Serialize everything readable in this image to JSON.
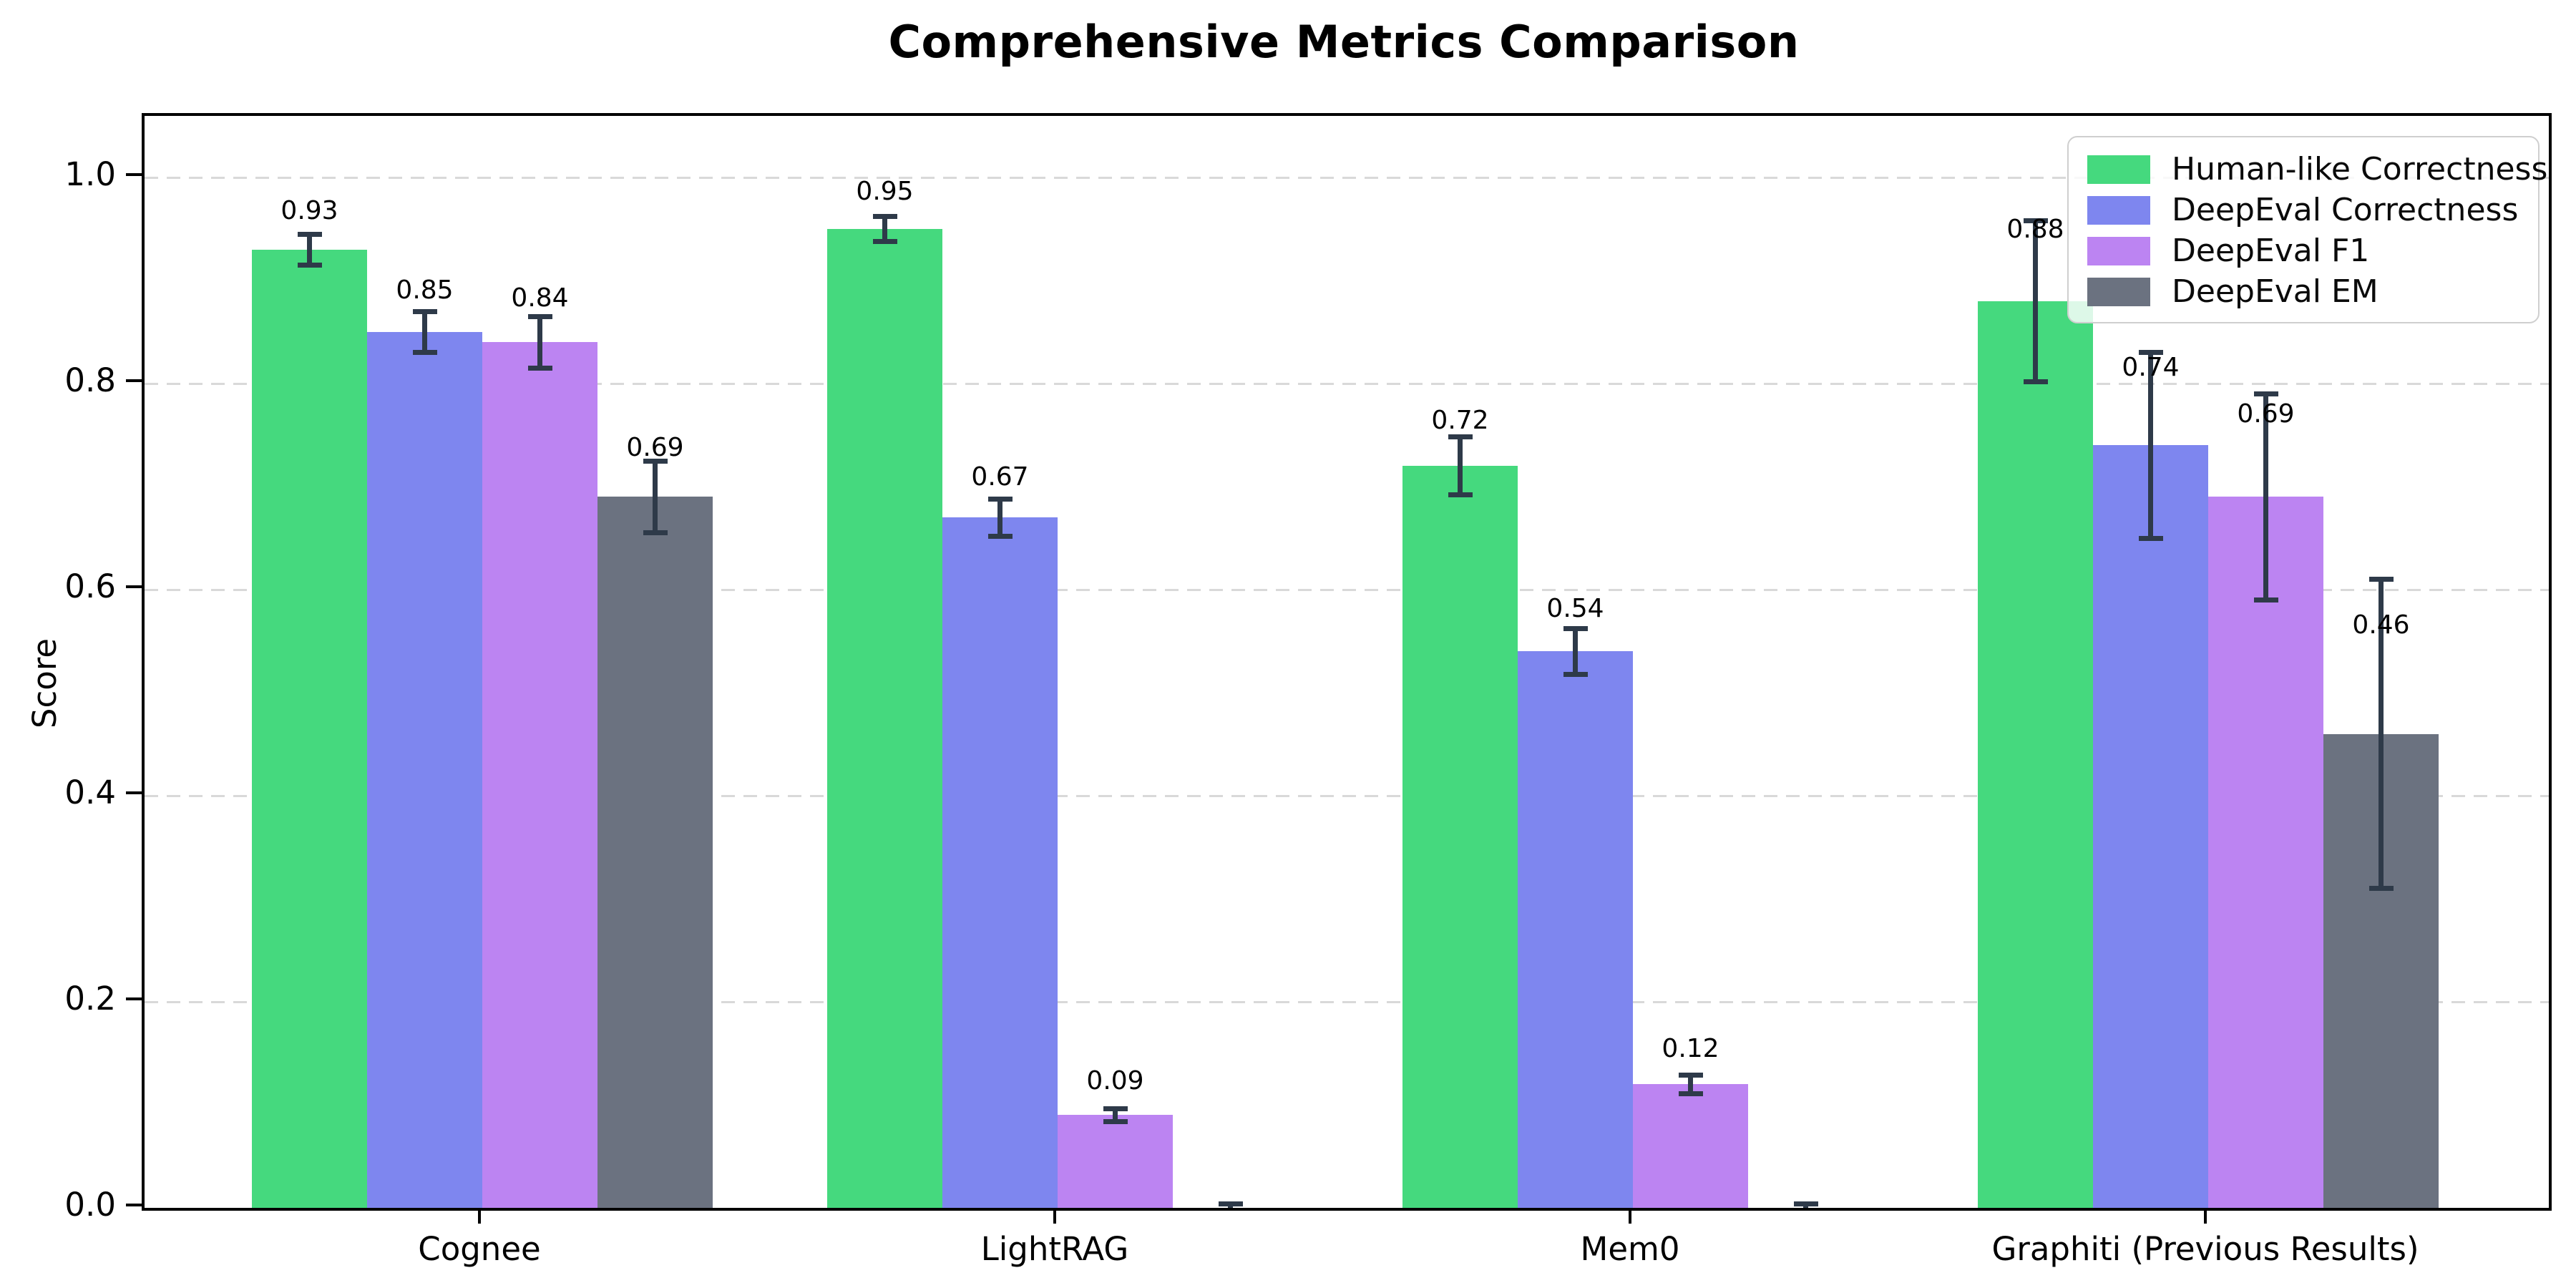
{
  "figure": {
    "title": "Comprehensive Metrics Comparison",
    "ylabel": "Score"
  },
  "chart_data": {
    "type": "bar",
    "title": "Comprehensive Metrics Comparison",
    "xlabel": "",
    "ylabel": "Score",
    "ylim": [
      0.0,
      1.06
    ],
    "yticks": [
      "0.0",
      "0.2",
      "0.4",
      "0.6",
      "0.8",
      "1.0"
    ],
    "grid": "horizontal dashed gridlines at 0.2 intervals",
    "legend_position": "upper right",
    "background_color": "#ffffff",
    "error_bar_color": "#2e3a49",
    "categories": [
      "Cognee",
      "LightRAG",
      "Mem0",
      "Graphiti (Previous Results)"
    ],
    "series": [
      {
        "name": "Human-like Correctness",
        "color": "#45d97e",
        "values": [
          0.93,
          0.95,
          0.72,
          0.88
        ],
        "errors": [
          0.015,
          0.012,
          0.028,
          0.078
        ],
        "labels": [
          "0.93",
          "0.95",
          "0.72",
          "0.88"
        ]
      },
      {
        "name": "DeepEval Correctness",
        "color": "#7e86ef",
        "values": [
          0.85,
          0.67,
          0.54,
          0.74
        ],
        "errors": [
          0.02,
          0.018,
          0.022,
          0.09
        ],
        "labels": [
          "0.85",
          "0.67",
          "0.54",
          "0.74"
        ]
      },
      {
        "name": "DeepEval F1",
        "color": "#bc84f2",
        "values": [
          0.84,
          0.09,
          0.12,
          0.69
        ],
        "errors": [
          0.025,
          0.006,
          0.009,
          0.1
        ],
        "labels": [
          "0.84",
          "0.09",
          "0.12",
          "0.69"
        ]
      },
      {
        "name": "DeepEval EM",
        "color": "#6b7280",
        "values": [
          0.69,
          0.0,
          0.0,
          0.46
        ],
        "errors": [
          0.035,
          0.004,
          0.004,
          0.15
        ],
        "labels": [
          "0.69",
          "",
          "",
          "0.46"
        ]
      }
    ]
  }
}
